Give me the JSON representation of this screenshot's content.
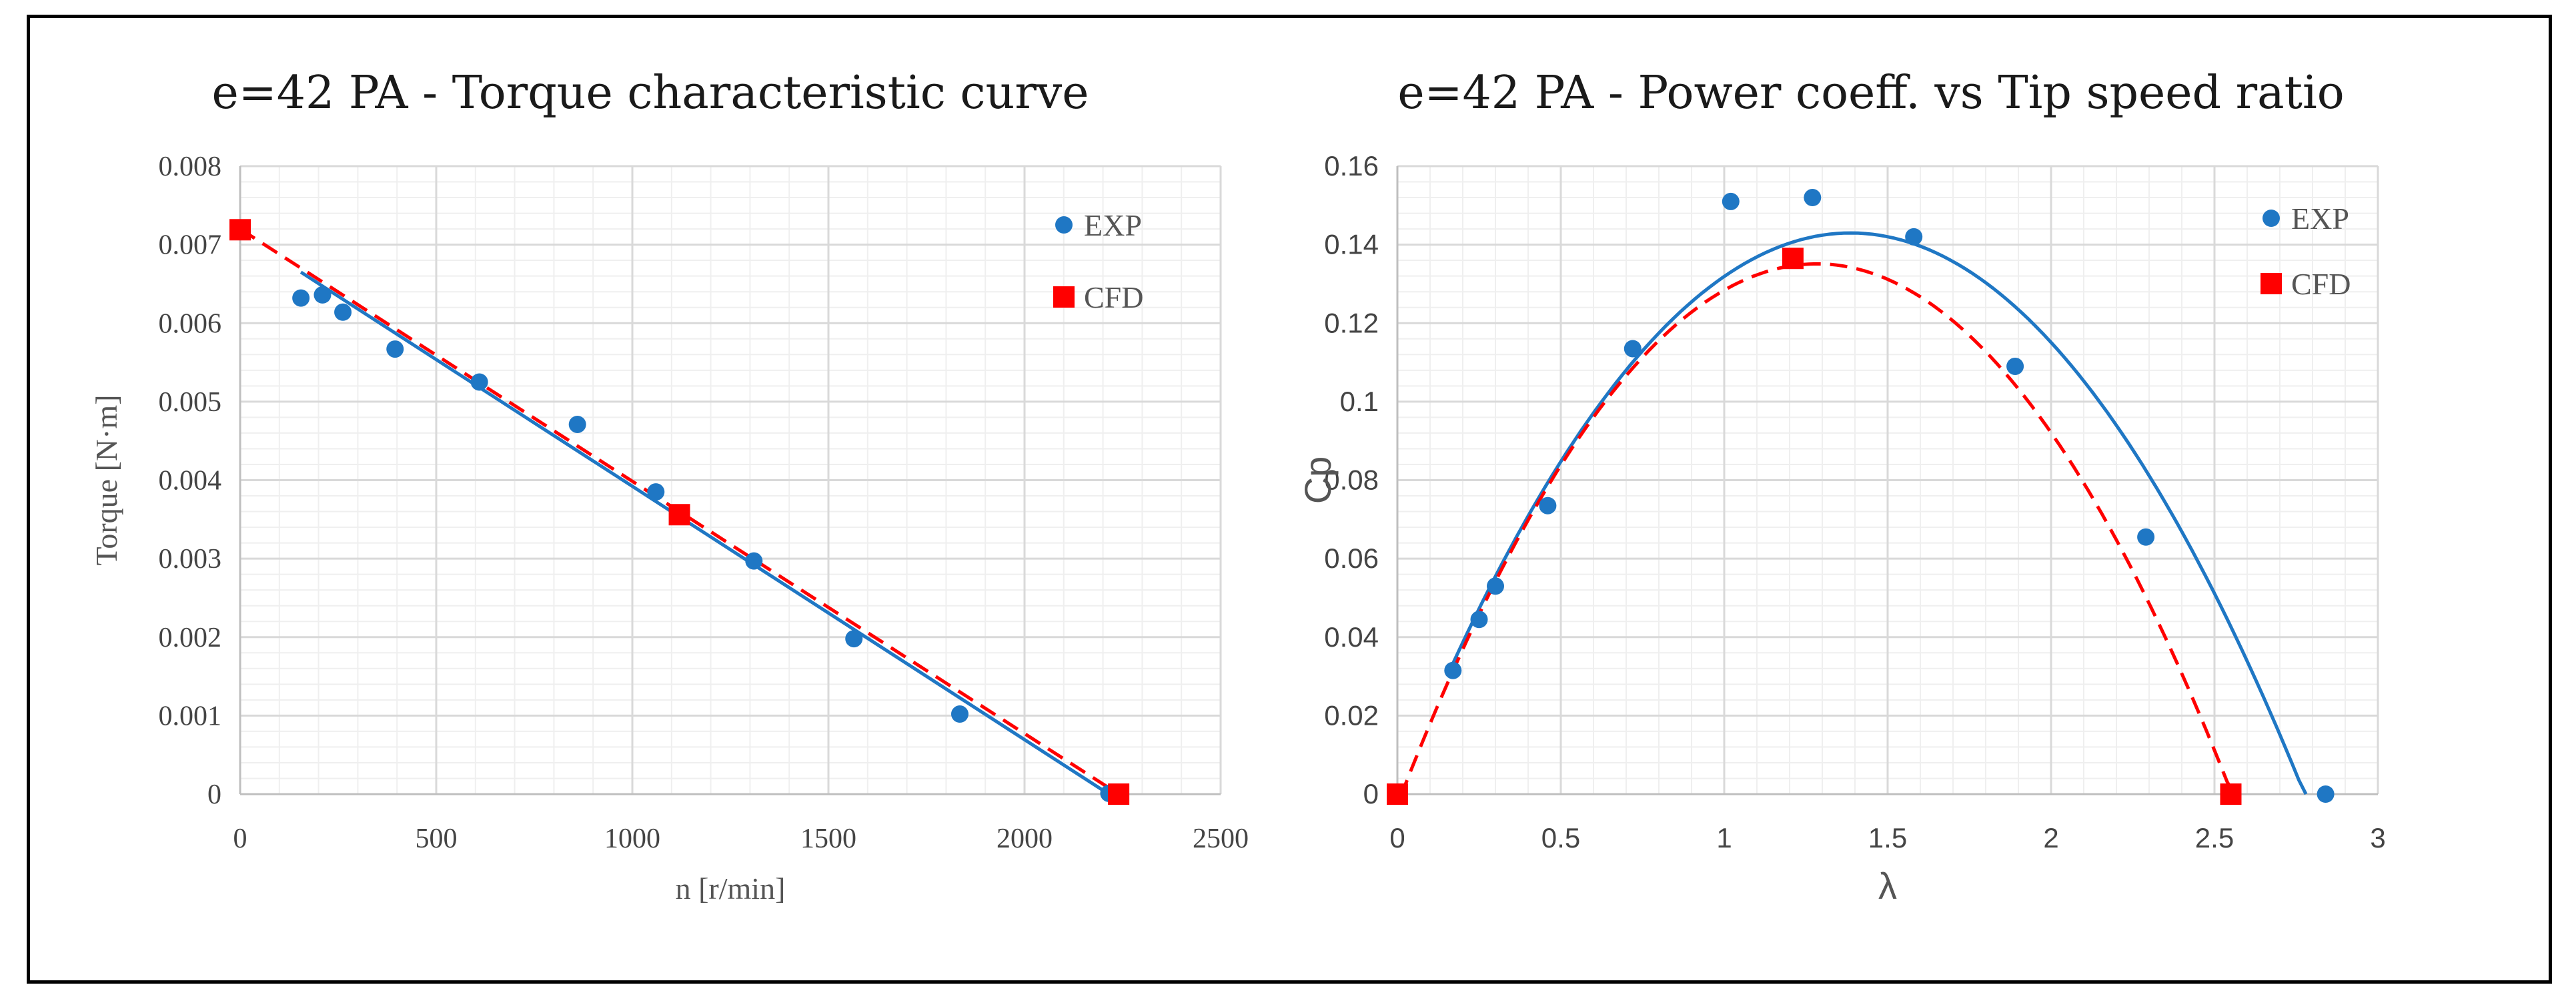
{
  "colors": {
    "exp": "#1f77c4",
    "cfd": "#ff0000",
    "grid_major": "#d9d9d9",
    "grid_minor": "#efefef"
  },
  "chart_data": [
    {
      "type": "scatter",
      "title": "e=42 PA - Torque characteristic curve",
      "xlabel": "n [r/min]",
      "ylabel": "Torque [N·m]",
      "xlim": [
        0,
        2500
      ],
      "ylim": [
        0,
        0.008
      ],
      "xticks": [
        0,
        500,
        1000,
        1500,
        2000,
        2500
      ],
      "xtick_labels": [
        "0",
        "500",
        "1000",
        "1500",
        "2000",
        "2500"
      ],
      "yticks": [
        0,
        0.001,
        0.002,
        0.003,
        0.004,
        0.005,
        0.006,
        0.007,
        0.008
      ],
      "ytick_labels": [
        "0",
        "0.001",
        "0.002",
        "0.003",
        "0.004",
        "0.005",
        "0.006",
        "0.007",
        "0.008"
      ],
      "legend_position": "top-right",
      "series": [
        {
          "name": "EXP",
          "marker": "circle",
          "points": [
            [
              155,
              0.00632
            ],
            [
              210,
              0.00636
            ],
            [
              262,
              0.00614
            ],
            [
              395,
              0.00567
            ],
            [
              610,
              0.00525
            ],
            [
              860,
              0.00471
            ],
            [
              1060,
              0.00385
            ],
            [
              1310,
              0.00297
            ],
            [
              1565,
              0.00198
            ],
            [
              1835,
              0.00102
            ],
            [
              2215,
              1e-05
            ]
          ],
          "fit": {
            "kind": "linear",
            "x0": 155,
            "y0": 0.00665,
            "x1": 2215,
            "y1": 0.0
          }
        },
        {
          "name": "CFD",
          "marker": "square",
          "points": [
            [
              0,
              0.00719
            ],
            [
              1120,
              0.00356
            ],
            [
              2240,
              0.0
            ]
          ],
          "fit": {
            "kind": "linear",
            "dashed": true,
            "x0": 0,
            "y0": 0.0072,
            "x1": 2240,
            "y1": 0.0
          }
        }
      ]
    },
    {
      "type": "scatter",
      "title": "e=42 PA - Power coeff. vs Tip speed ratio",
      "xlabel": "λ",
      "ylabel": "Cp",
      "xlim": [
        0,
        3
      ],
      "ylim": [
        0,
        0.16
      ],
      "xticks": [
        0,
        0.5,
        1,
        1.5,
        2,
        2.5,
        3
      ],
      "xtick_labels": [
        "0",
        "0.5",
        "1",
        "1.5",
        "2",
        "2.5",
        "3"
      ],
      "yticks": [
        0,
        0.02,
        0.04,
        0.06,
        0.08,
        0.1,
        0.12,
        0.14,
        0.16
      ],
      "ytick_labels": [
        "0",
        "0.02",
        "0.04",
        "0.06",
        "0.08",
        "0.1",
        "0.12",
        "0.14",
        "0.16"
      ],
      "legend_position": "top-right",
      "series": [
        {
          "name": "EXP",
          "marker": "circle",
          "points": [
            [
              0.17,
              0.0315
            ],
            [
              0.25,
              0.0445
            ],
            [
              0.3,
              0.053
            ],
            [
              0.46,
              0.0735
            ],
            [
              0.72,
              0.1135
            ],
            [
              1.02,
              0.151
            ],
            [
              1.27,
              0.152
            ],
            [
              1.58,
              0.142
            ],
            [
              1.89,
              0.109
            ],
            [
              2.29,
              0.0655
            ],
            [
              2.84,
              0.0
            ]
          ],
          "fit": {
            "kind": "quadratic",
            "coeffs": [
              -0.0741,
              0.2055,
              0.0005
            ],
            "x_range": [
              0.17,
              2.78
            ]
          }
        },
        {
          "name": "CFD",
          "marker": "square",
          "points": [
            [
              0.0,
              0.0
            ],
            [
              1.21,
              0.1365
            ],
            [
              2.55,
              0.0
            ]
          ],
          "fit": {
            "kind": "quadratic",
            "dashed": true,
            "coeffs": [
              -0.0837,
              0.2148,
              -0.0027
            ],
            "x_range": [
              0.0,
              2.56
            ]
          }
        }
      ]
    }
  ]
}
